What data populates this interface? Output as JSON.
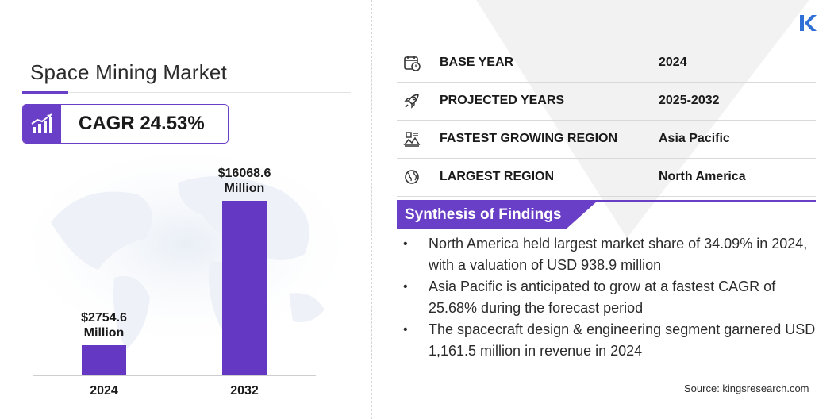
{
  "title": "Space Mining Market",
  "cagr": "CAGR 24.53%",
  "chart_data": {
    "type": "bar",
    "categories": [
      "2024",
      "2032"
    ],
    "values": [
      2754.6,
      16068.6
    ],
    "value_labels": [
      "$2754.6\nMillion",
      "$16068.6\nMillion"
    ],
    "title": "",
    "xlabel": "",
    "ylabel": "",
    "bar_color": "#6438c2"
  },
  "info_rows": [
    {
      "label": "BASE YEAR",
      "value": "2024",
      "icon": "calendar-icon"
    },
    {
      "label": "PROJECTED YEARS",
      "value": "2025-2032",
      "icon": "rocket-icon"
    },
    {
      "label": "FASTEST GROWING REGION",
      "value": "Asia Pacific",
      "icon": "region-icon"
    },
    {
      "label": "LARGEST REGION",
      "value": "North America",
      "icon": "globe-icon"
    }
  ],
  "synthesis": {
    "title": "Synthesis of Findings",
    "findings": [
      "North America held largest market share of 34.09% in 2024, with a valuation of USD 938.9 million",
      "Asia Pacific is anticipated to grow at a fastest CAGR of 25.68% during the forecast period",
      "The spacecraft design & engineering segment garnered USD 1,161.5 million in revenue in 2024"
    ]
  },
  "source": "Source:  kingsresearch.com",
  "colors": {
    "accent": "#6a3fc7",
    "bar": "#6438c2"
  }
}
